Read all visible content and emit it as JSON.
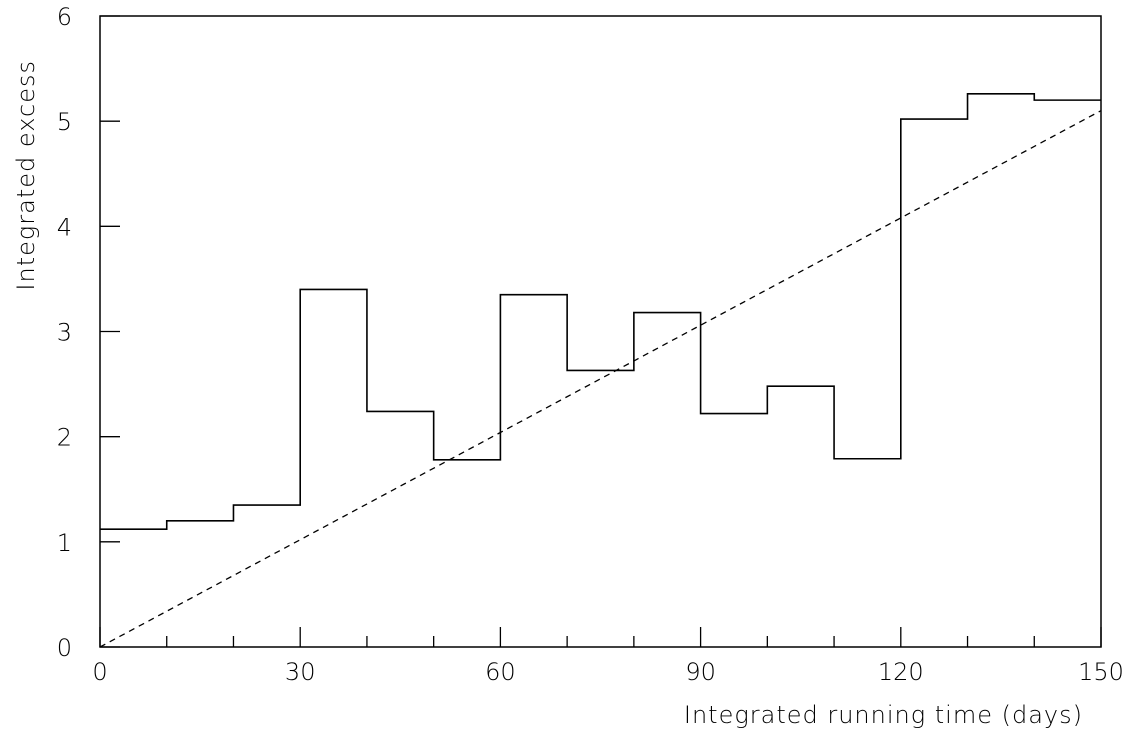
{
  "chart_data": {
    "type": "line",
    "xlabel": "Integrated running time (days)",
    "ylabel": "Integrated excess",
    "xlim": [
      0,
      150
    ],
    "ylim": [
      0,
      6
    ],
    "x_ticks": [
      0,
      30,
      60,
      90,
      120,
      150
    ],
    "y_ticks": [
      0,
      1,
      2,
      3,
      4,
      5,
      6
    ],
    "x_tick_labels": [
      "0",
      "30",
      "60",
      "90",
      "120",
      "150"
    ],
    "y_tick_labels": [
      "0",
      "1",
      "2",
      "3",
      "4",
      "5",
      "6"
    ],
    "grid": false,
    "series": [
      {
        "style": "step-histogram",
        "bin_edges": [
          0,
          10,
          20,
          30,
          40,
          50,
          60,
          70,
          80,
          90,
          100,
          110,
          120,
          130,
          140,
          150
        ],
        "values": [
          1.12,
          1.2,
          1.35,
          3.4,
          2.24,
          1.78,
          3.35,
          2.63,
          3.18,
          2.22,
          2.48,
          1.79,
          5.02,
          5.26,
          5.2
        ]
      },
      {
        "style": "dashed-line",
        "x": [
          0,
          150
        ],
        "y": [
          0,
          5.1
        ]
      }
    ]
  }
}
